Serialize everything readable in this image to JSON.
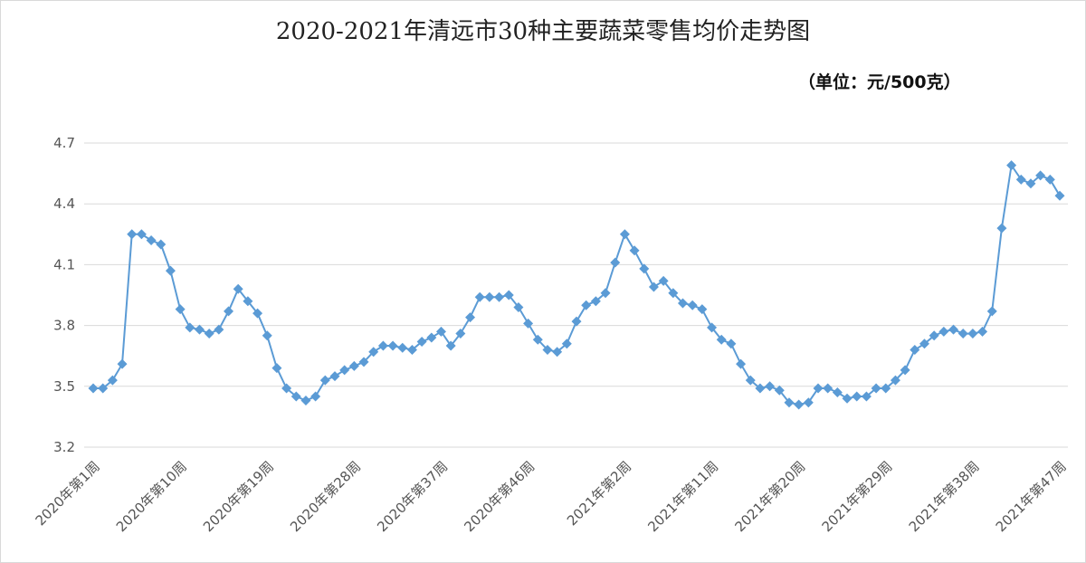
{
  "chart_data": {
    "type": "line",
    "title": "2020-2021年清远市30种主要蔬菜零售均价走势图",
    "unit_note": "（单位：元/500克）",
    "xlabel": "",
    "ylabel": "",
    "ylim": [
      3.2,
      4.7
    ],
    "yticks": [
      "3.2",
      "3.5",
      "3.8",
      "4.1",
      "4.4",
      "4.7"
    ],
    "grid": true,
    "color": "#5B9BD5",
    "xtick_labels": [
      {
        "index": 0,
        "label": "2020年第1周"
      },
      {
        "index": 9,
        "label": "2020年第10周"
      },
      {
        "index": 18,
        "label": "2020年第19周"
      },
      {
        "index": 27,
        "label": "2020年第28周"
      },
      {
        "index": 36,
        "label": "2020年第37周"
      },
      {
        "index": 45,
        "label": "2020年第46周"
      },
      {
        "index": 55,
        "label": "2021年第2周"
      },
      {
        "index": 64,
        "label": "2021年第11周"
      },
      {
        "index": 73,
        "label": "2021年第20周"
      },
      {
        "index": 82,
        "label": "2021年第29周"
      },
      {
        "index": 91,
        "label": "2021年第38周"
      },
      {
        "index": 100,
        "label": "2021年第47周"
      }
    ],
    "values": [
      3.49,
      3.49,
      3.53,
      3.61,
      4.25,
      4.25,
      4.22,
      4.2,
      4.07,
      3.88,
      3.79,
      3.78,
      3.76,
      3.78,
      3.87,
      3.98,
      3.92,
      3.86,
      3.75,
      3.59,
      3.49,
      3.45,
      3.43,
      3.45,
      3.53,
      3.55,
      3.58,
      3.6,
      3.62,
      3.67,
      3.7,
      3.7,
      3.69,
      3.68,
      3.72,
      3.74,
      3.77,
      3.7,
      3.76,
      3.84,
      3.94,
      3.94,
      3.94,
      3.95,
      3.89,
      3.81,
      3.73,
      3.68,
      3.67,
      3.71,
      3.82,
      3.9,
      3.92,
      3.96,
      4.11,
      4.25,
      4.17,
      4.08,
      3.99,
      4.02,
      3.96,
      3.91,
      3.9,
      3.88,
      3.79,
      3.73,
      3.71,
      3.61,
      3.53,
      3.49,
      3.5,
      3.48,
      3.42,
      3.41,
      3.42,
      3.49,
      3.49,
      3.47,
      3.44,
      3.45,
      3.45,
      3.49,
      3.49,
      3.53,
      3.58,
      3.68,
      3.71,
      3.75,
      3.77,
      3.78,
      3.76,
      3.76,
      3.77,
      3.87,
      4.28,
      4.59,
      4.52,
      4.5,
      4.54,
      4.52,
      4.44
    ]
  }
}
